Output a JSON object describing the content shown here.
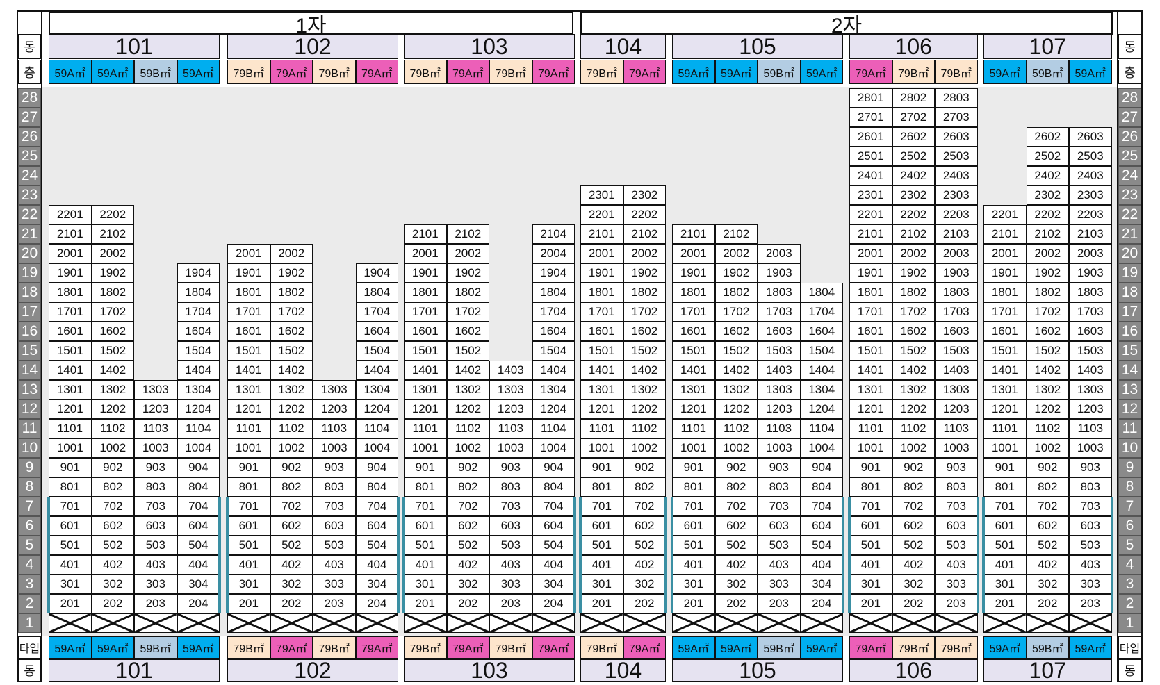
{
  "phases": [
    "1자",
    "2자"
  ],
  "labels": {
    "dong": "동",
    "floor": "층",
    "type": "타입"
  },
  "floors": [
    "1",
    "2",
    "3",
    "4",
    "5",
    "6",
    "7",
    "8",
    "9",
    "10",
    "11",
    "12",
    "13",
    "14",
    "15",
    "16",
    "17",
    "18",
    "19",
    "20",
    "21",
    "22",
    "23",
    "24",
    "25",
    "26",
    "27",
    "28"
  ],
  "type_colors": {
    "59A㎡": "#00aeef",
    "59B㎡": "#b3cde3",
    "79A㎡": "#ec5fb8",
    "79B㎡": "#fde5cc"
  },
  "buildings": [
    {
      "name": "101",
      "types": [
        "59A㎡",
        "59A㎡",
        "59B㎡",
        "59A㎡"
      ],
      "top_floors": [
        22,
        22,
        13,
        19
      ]
    },
    {
      "name": "102",
      "types": [
        "79B㎡",
        "79A㎡",
        "79B㎡",
        "79A㎡"
      ],
      "top_floors": [
        20,
        20,
        13,
        19
      ]
    },
    {
      "name": "103",
      "types": [
        "79B㎡",
        "79A㎡",
        "79B㎡",
        "79A㎡"
      ],
      "top_floors": [
        21,
        21,
        14,
        21
      ]
    },
    {
      "name": "104",
      "types": [
        "79B㎡",
        "79A㎡"
      ],
      "top_floors": [
        23,
        23
      ]
    },
    {
      "name": "105",
      "types": [
        "59A㎡",
        "59A㎡",
        "59B㎡",
        "59A㎡"
      ],
      "top_floors": [
        21,
        21,
        20,
        18
      ]
    },
    {
      "name": "106",
      "types": [
        "79A㎡",
        "79B㎡",
        "79B㎡"
      ],
      "top_floors": [
        28,
        28,
        28
      ]
    },
    {
      "name": "107",
      "types": [
        "59A㎡",
        "59B㎡",
        "59A㎡"
      ],
      "top_floors": [
        22,
        26,
        26
      ]
    }
  ]
}
